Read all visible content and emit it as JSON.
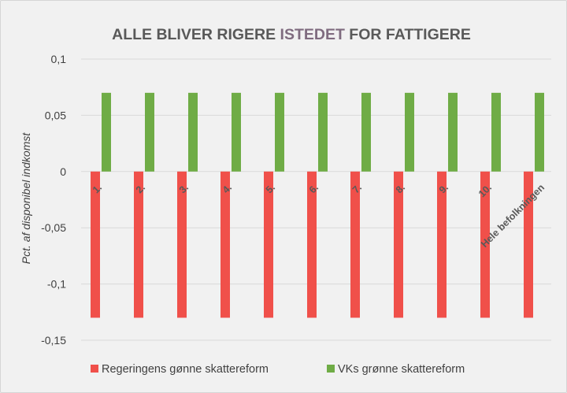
{
  "chart_data": {
    "type": "bar",
    "title_parts": [
      {
        "text": "ALLE BLIVER RIGERE ",
        "color": "#595959"
      },
      {
        "text": "ISTEDET",
        "color": "#7f6b7f"
      },
      {
        "text": " FOR FATTIGERE",
        "color": "#595959"
      }
    ],
    "xlabel": "",
    "ylabel": "Pct. af disponibel indkomst",
    "ylim": [
      -0.15,
      0.1
    ],
    "yticks": [
      {
        "value": 0.1,
        "label": "0,1"
      },
      {
        "value": 0.05,
        "label": "0,05"
      },
      {
        "value": 0,
        "label": "0"
      },
      {
        "value": -0.05,
        "label": "-0,05"
      },
      {
        "value": -0.1,
        "label": "-0,1"
      },
      {
        "value": -0.15,
        "label": "-0,15"
      }
    ],
    "grid": true,
    "legend_position": "bottom",
    "categories": [
      "1.",
      "2.",
      "3.",
      "4.",
      "5.",
      "6.",
      "7.",
      "8.",
      "9.",
      "10.",
      "Hele befolkningen"
    ],
    "series": [
      {
        "name": "Regeringens  gønne skattereform",
        "color": "#f0504a",
        "values": [
          -0.13,
          -0.13,
          -0.13,
          -0.13,
          -0.13,
          -0.13,
          -0.13,
          -0.13,
          -0.13,
          -0.13,
          -0.13
        ]
      },
      {
        "name": "VKs grønne skattereform",
        "color": "#6fac46",
        "values": [
          0.07,
          0.07,
          0.07,
          0.07,
          0.07,
          0.07,
          0.07,
          0.07,
          0.07,
          0.07,
          0.07
        ]
      }
    ]
  }
}
